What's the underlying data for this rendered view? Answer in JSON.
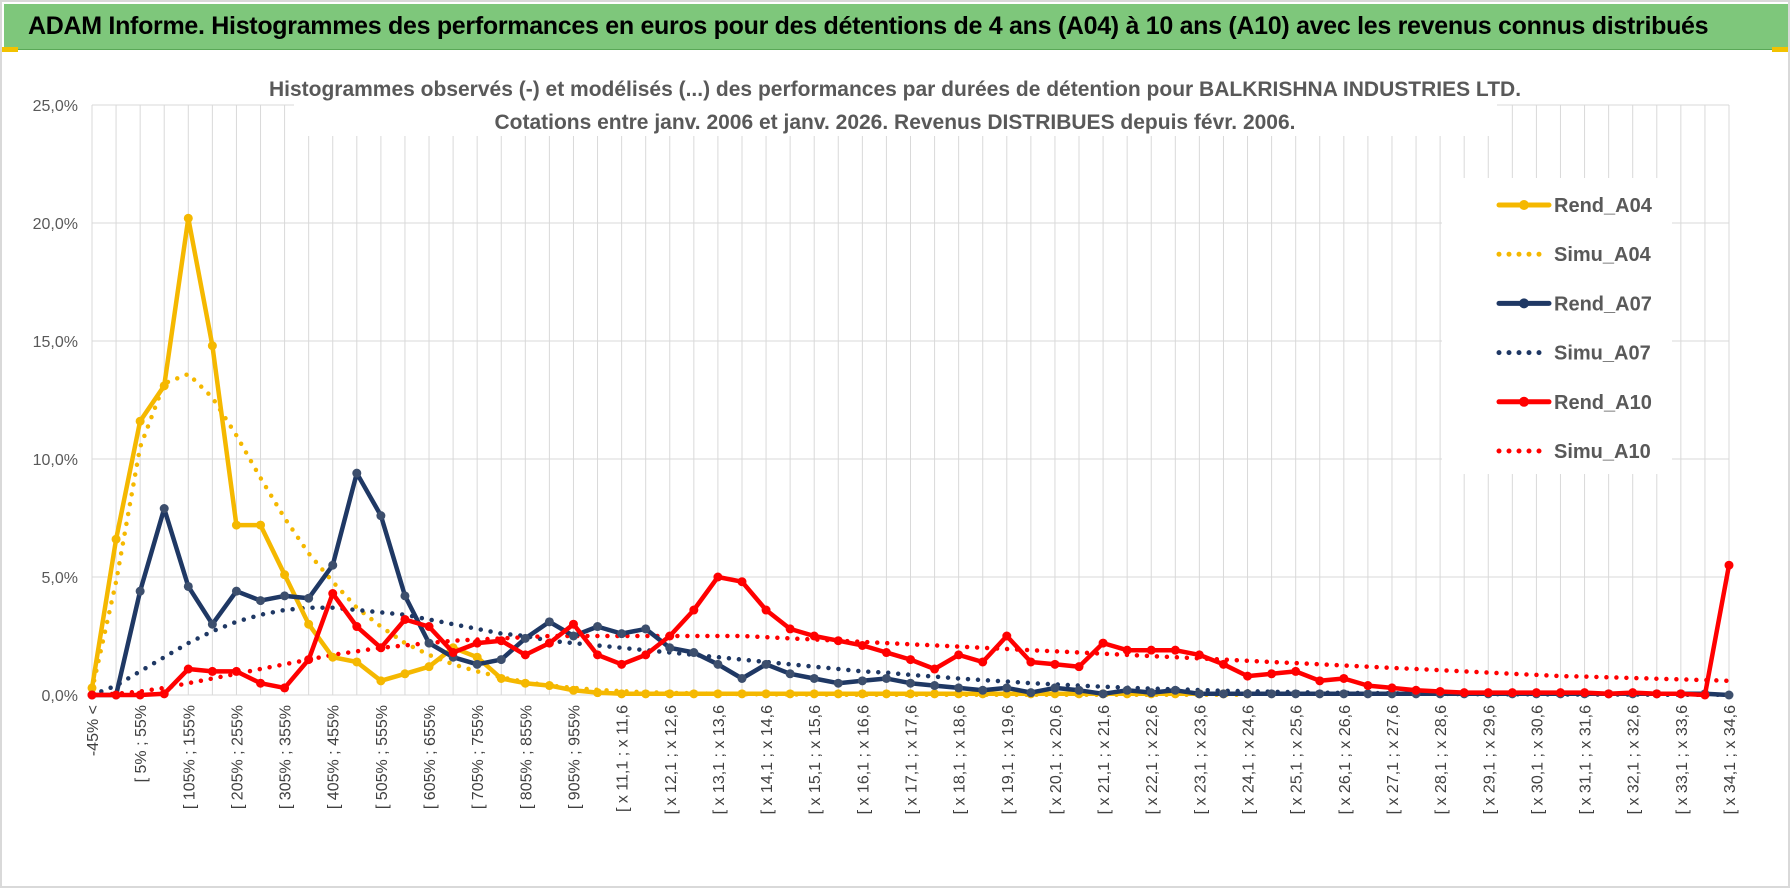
{
  "banner": {
    "title": "ADAM Informe. Histogrammes des performances en euros pour des détentions de 4 ans (A04) à 10 ans (A10) avec les revenus connus distribués"
  },
  "chart_data": {
    "type": "line",
    "title": "Histogrammes observés (-) et modélisés (...) des performances par durées de détention pour BALKRISHNA INDUSTRIES LTD.",
    "subtitle": "Cotations entre janv. 2006 et janv. 2026. Revenus DISTRIBUES depuis févr. 2006.",
    "ylim": [
      0,
      25
    ],
    "yticks": [
      0,
      5,
      10,
      15,
      20,
      25
    ],
    "ytick_labels": [
      "0,0%",
      "5,0%",
      "10,0%",
      "15,0%",
      "20,0%",
      "25,0%"
    ],
    "grid": true,
    "legend_position": "right",
    "x_count": 69,
    "x_labels": [
      "-45% <",
      "[ 5% ; 55%",
      "[ 105% ; 155%",
      "[ 205% ; 255%",
      "[ 305% ; 355%",
      "[ 405% ; 455%",
      "[ 505% ; 555%",
      "[ 605% ; 655%",
      "[ 705% ; 755%",
      "[ 805% ; 855%",
      "[ 905% ; 955%",
      "[ x 11,1 ; x 11,6",
      "[ x 12,1 ; x 12,6",
      "[ x 13,1 ; x 13,6",
      "[ x 14,1 ; x 14,6",
      "[ x 15,1 ; x 15,6",
      "[ x 16,1 ; x 16,6",
      "[ x 17,1 ; x 17,6",
      "[ x 18,1 ; x 18,6",
      "[ x 19,1 ; x 19,6",
      "[ x 20,1 ; x 20,6",
      "[ x 21,1 ; x 21,6",
      "[ x 22,1 ; x 22,6",
      "[ x 23,1 ; x 23,6",
      "[ x 24,1 ; x 24,6",
      "[ x 25,1 ; x 25,6",
      "[ x 26,1 ; x 26,6",
      "[ x 27,1 ; x 27,6",
      "[ x 28,1 ; x 28,6",
      "[ x 29,1 ; x 29,6",
      "[ x 30,1 ; x 30,6",
      "[ x 31,1 ; x 31,6",
      "[ x 32,1 ; x 32,6",
      "[ x 33,1 ; x 33,6",
      "[ x 34,1 ; x 34,6"
    ],
    "series": [
      {
        "name": "Rend_A04",
        "color": "#f5b800",
        "style": "solid",
        "markers": true,
        "values": [
          0.3,
          6.6,
          11.6,
          13.1,
          20.2,
          14.8,
          7.2,
          7.2,
          5.1,
          3.0,
          1.6,
          1.4,
          0.6,
          0.9,
          1.2,
          2.0,
          1.6,
          0.7,
          0.5,
          0.4,
          0.2,
          0.1,
          0.05,
          0.05,
          0.05,
          0.05,
          0.05,
          0.05,
          0.05,
          0.05,
          0.05,
          0.05,
          0.05,
          0.05,
          0.05,
          0.05,
          0.05,
          0.05,
          0.05,
          0.05,
          0.05,
          0.05,
          0.05,
          0.05,
          0.05,
          0.05,
          0.05,
          0.05,
          0.05
        ]
      },
      {
        "name": "Simu_A04",
        "color": "#f5b800",
        "style": "dotted",
        "markers": false,
        "values": [
          0.2,
          4.8,
          10.5,
          13.2,
          13.6,
          12.6,
          11.0,
          9.2,
          7.5,
          6.0,
          4.8,
          3.7,
          2.9,
          2.2,
          1.7,
          1.3,
          1.0,
          0.75,
          0.55,
          0.4,
          0.3,
          0.22,
          0.16,
          0.12,
          0.09,
          0.07,
          0.05,
          0.04,
          0.03,
          0.02,
          0.02,
          0.01,
          0.01,
          0.01,
          0.01,
          0.01,
          0.01,
          0.01,
          0.01,
          0.01,
          0.01,
          0.01,
          0.01,
          0.01,
          0.01,
          0.01,
          0.01,
          0.01,
          0.01
        ]
      },
      {
        "name": "Rend_A07",
        "color": "#1f3864",
        "style": "solid",
        "markers": true,
        "values": [
          0,
          0,
          4.4,
          7.9,
          4.6,
          3.0,
          4.4,
          4.0,
          4.2,
          4.1,
          5.5,
          9.4,
          7.6,
          4.2,
          2.2,
          1.6,
          1.3,
          1.5,
          2.4,
          3.1,
          2.5,
          2.9,
          2.6,
          2.8,
          2.0,
          1.8,
          1.3,
          0.7,
          1.3,
          0.9,
          0.7,
          0.5,
          0.6,
          0.7,
          0.5,
          0.4,
          0.3,
          0.2,
          0.3,
          0.1,
          0.3,
          0.2,
          0.05,
          0.2,
          0.1,
          0.2,
          0.05,
          0.05,
          0.05,
          0.05,
          0.05,
          0.05,
          0.05,
          0.05,
          0.05,
          0.05,
          0.05,
          0.05,
          0.05,
          0.05,
          0.05,
          0.05,
          0.05,
          0.05,
          0.05,
          0.05,
          0.05,
          0.05,
          0.0
        ]
      },
      {
        "name": "Simu_A07",
        "color": "#1f3864",
        "style": "dotted",
        "markers": false,
        "values": [
          0.0,
          0.4,
          1.0,
          1.6,
          2.2,
          2.7,
          3.1,
          3.4,
          3.6,
          3.7,
          3.7,
          3.6,
          3.5,
          3.4,
          3.2,
          3.0,
          2.8,
          2.6,
          2.5,
          2.3,
          2.2,
          2.1,
          2.0,
          1.9,
          1.8,
          1.7,
          1.6,
          1.5,
          1.4,
          1.3,
          1.2,
          1.1,
          1.0,
          0.95,
          0.85,
          0.78,
          0.7,
          0.63,
          0.57,
          0.5,
          0.45,
          0.4,
          0.35,
          0.31,
          0.27,
          0.24,
          0.21,
          0.18,
          0.16,
          0.14,
          0.12,
          0.1,
          0.09,
          0.08,
          0.07,
          0.06,
          0.05,
          0.04,
          0.04,
          0.03,
          0.03,
          0.02,
          0.02,
          0.02,
          0.02,
          0.01,
          0.01,
          0.01,
          0.01
        ]
      },
      {
        "name": "Rend_A10",
        "color": "#ff0000",
        "style": "solid",
        "markers": true,
        "values": [
          0,
          0,
          0,
          0.05,
          1.1,
          1.0,
          1.0,
          0.5,
          0.3,
          1.5,
          4.3,
          2.9,
          2.0,
          3.2,
          2.9,
          1.8,
          2.2,
          2.3,
          1.7,
          2.2,
          3.0,
          1.7,
          1.3,
          1.7,
          2.5,
          3.6,
          5.0,
          4.8,
          3.6,
          2.8,
          2.5,
          2.3,
          2.1,
          1.8,
          1.5,
          1.1,
          1.7,
          1.4,
          2.5,
          1.4,
          1.3,
          1.2,
          2.2,
          1.9,
          1.9,
          1.9,
          1.7,
          1.3,
          0.8,
          0.9,
          1.0,
          0.6,
          0.7,
          0.4,
          0.3,
          0.2,
          0.15,
          0.1,
          0.1,
          0.1,
          0.1,
          0.1,
          0.1,
          0.05,
          0.1,
          0.05,
          0.05,
          0.0,
          5.5
        ]
      },
      {
        "name": "Simu_A10",
        "color": "#ff0000",
        "style": "dotted",
        "markers": false,
        "values": [
          0.0,
          0.05,
          0.15,
          0.3,
          0.5,
          0.7,
          0.9,
          1.1,
          1.3,
          1.5,
          1.7,
          1.85,
          2.0,
          2.1,
          2.2,
          2.3,
          2.35,
          2.4,
          2.45,
          2.5,
          2.5,
          2.5,
          2.5,
          2.5,
          2.5,
          2.5,
          2.5,
          2.5,
          2.45,
          2.4,
          2.35,
          2.3,
          2.25,
          2.2,
          2.15,
          2.1,
          2.05,
          2.0,
          1.95,
          1.9,
          1.85,
          1.8,
          1.75,
          1.7,
          1.65,
          1.6,
          1.55,
          1.5,
          1.45,
          1.4,
          1.35,
          1.3,
          1.25,
          1.2,
          1.15,
          1.1,
          1.05,
          1.0,
          0.95,
          0.9,
          0.85,
          0.8,
          0.78,
          0.75,
          0.72,
          0.69,
          0.66,
          0.63,
          0.6
        ]
      }
    ]
  }
}
